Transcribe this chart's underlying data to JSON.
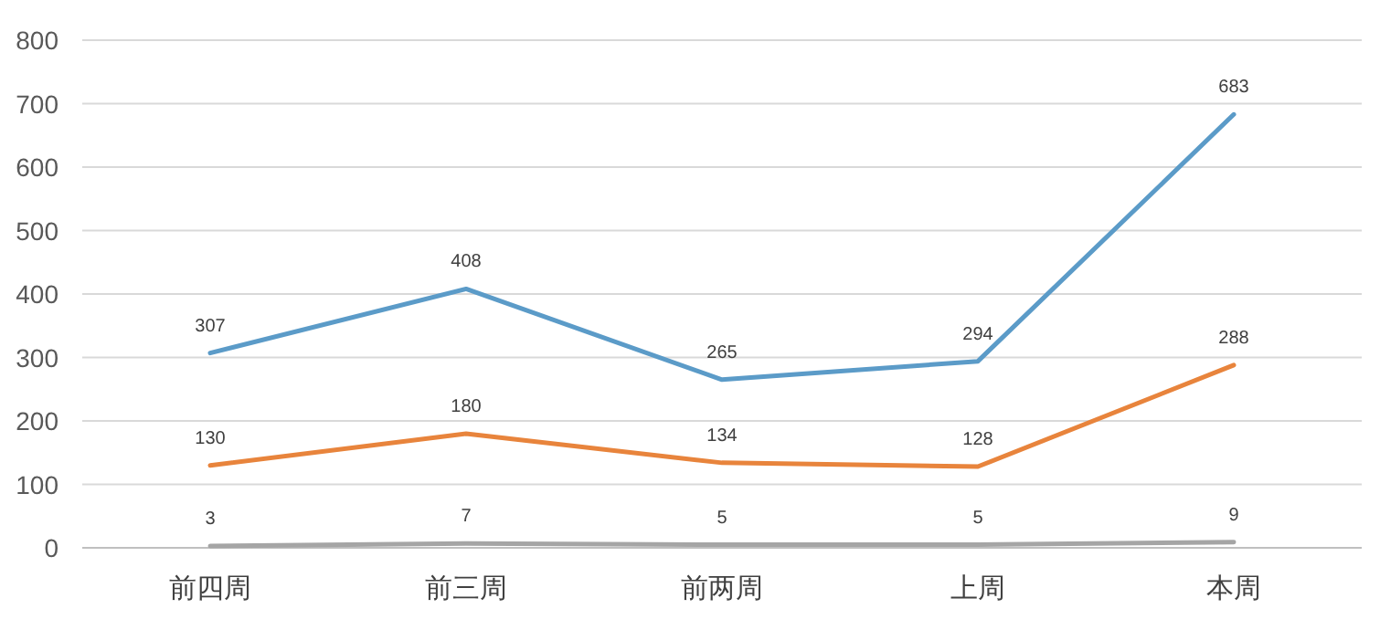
{
  "chart_data": {
    "type": "line",
    "categories": [
      "前四周",
      "前三周",
      "前两周",
      "上周",
      "本周"
    ],
    "series": [
      {
        "color": "#5b9bc8",
        "values": [
          307,
          408,
          265,
          294,
          683
        ]
      },
      {
        "color": "#e8843c",
        "values": [
          130,
          180,
          134,
          128,
          288
        ]
      },
      {
        "color": "#a5a5a5",
        "values": [
          3,
          7,
          5,
          5,
          9
        ]
      }
    ],
    "ylim": [
      0,
      800
    ],
    "yticks": [
      0,
      100,
      200,
      300,
      400,
      500,
      600,
      700,
      800
    ],
    "grid": "y",
    "data_labels": true,
    "marker": "none",
    "line_style": "solid"
  }
}
